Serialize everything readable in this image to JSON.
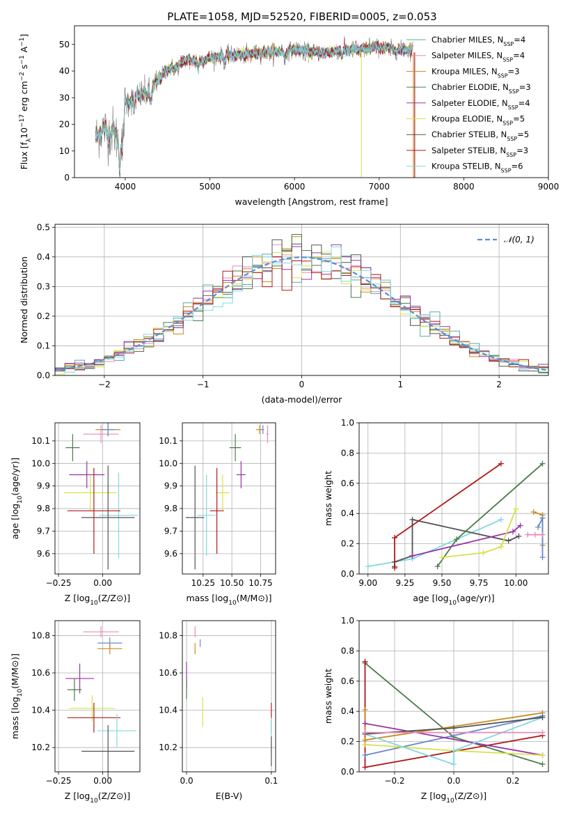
{
  "figure_title": "PLATE=1058, MJD=52520, FIBERID=0005, z=0.053",
  "chart_data": [
    {
      "id": "spectrum",
      "type": "line",
      "xlabel": "wavelength [Angstrom, rest frame]",
      "ylabel": "Flux [f_λ10^-17 erg cm^-2 s^-1 A^-1]",
      "xlim": [
        3400,
        9000
      ],
      "ylim": [
        0,
        57
      ],
      "xticks": [
        4000,
        5000,
        6000,
        7000,
        8000,
        9000
      ],
      "yticks": [
        0,
        10,
        20,
        30,
        40,
        50
      ],
      "legend_position": "right",
      "spectrum_shape": {
        "x": [
          3650,
          3700,
          3750,
          3800,
          3850,
          3900,
          3950,
          4000,
          4100,
          4200,
          4300,
          4400,
          4500,
          4600,
          4700,
          4800,
          4900,
          5000,
          5200,
          5400,
          5600,
          5800,
          6000,
          6200,
          6400,
          6600,
          6800,
          7000,
          7200,
          7400
        ],
        "y": [
          15,
          17,
          19,
          16,
          18,
          15,
          14,
          28,
          30,
          31,
          32,
          37,
          41,
          41,
          44,
          44,
          44,
          45,
          46,
          46,
          47,
          47,
          48,
          47,
          47,
          48,
          48,
          49,
          48,
          48
        ]
      },
      "model_series": [
        {
          "name": "Chabrier MILES",
          "nssp": "4",
          "color": "#58a8a8"
        },
        {
          "name": "Salpeter MILES",
          "nssp": "4",
          "color": "#e88ab8"
        },
        {
          "name": "Kroupa MILES",
          "nssp": "3",
          "color": "#c88a20"
        },
        {
          "name": "Chabrier ELODIE",
          "nssp": "3",
          "color": "#4a7a4a"
        },
        {
          "name": "Salpeter ELODIE",
          "nssp": "4",
          "color": "#9b30a8"
        },
        {
          "name": "Kroupa ELODIE",
          "nssp": "5",
          "color": "#d8e048"
        },
        {
          "name": "Chabrier STELIB",
          "nssp": "5",
          "color": "#505050"
        },
        {
          "name": "Salpeter STELIB",
          "nssp": "3",
          "color": "#b01818"
        },
        {
          "name": "Kroupa STELIB",
          "nssp": "6",
          "color": "#80d8e0"
        }
      ]
    },
    {
      "id": "residuals",
      "type": "bar",
      "xlabel": "(data-model)/error",
      "ylabel": "Normed distribution",
      "xlim": [
        -2.5,
        2.5
      ],
      "ylim": [
        0,
        0.51
      ],
      "xticks": [
        -2,
        -1,
        0,
        1,
        2
      ],
      "yticks": [
        0.0,
        0.1,
        0.2,
        0.3,
        0.4,
        0.5
      ],
      "grid": true,
      "legend_position": "top-right",
      "gaussian_label": "𝒩(0, 1)",
      "gaussian_color": "#5b8bd8",
      "bin_width": 0.1
    },
    {
      "id": "age-vs-z",
      "type": "scatter",
      "xlabel": "Z [log10(Z/Z⊙)]",
      "ylabel": "age  [log10(age/yr)]",
      "xlim": [
        -0.27,
        0.21
      ],
      "ylim": [
        9.51,
        10.18
      ],
      "xticks": [
        -0.25,
        0.0
      ],
      "yticks": [
        9.6,
        9.7,
        9.8,
        9.9,
        10.0,
        10.1
      ],
      "grid": true,
      "points": [
        {
          "color": "#c88a20",
          "x": 0.03,
          "xerr": 0.07,
          "y": 10.15,
          "yerr": 0.03
        },
        {
          "color": "#e88ab8",
          "x": -0.01,
          "xerr": 0.1,
          "y": 10.13,
          "yerr": 0.04
        },
        {
          "color": "#6688cc",
          "x": 0.03,
          "xerr": 0.04,
          "y": 10.15,
          "yerr": 0.03
        },
        {
          "color": "#4a7a4a",
          "x": -0.17,
          "xerr": 0.04,
          "y": 10.07,
          "yerr": 0.06
        },
        {
          "color": "#9b30a8",
          "x": -0.09,
          "xerr": 0.1,
          "y": 9.95,
          "yerr": 0.06
        },
        {
          "color": "#d8e048",
          "x": -0.07,
          "xerr": 0.15,
          "y": 9.87,
          "yerr": 0.08
        },
        {
          "color": "#80d8e0",
          "x": 0.09,
          "xerr": 0.11,
          "y": 9.77,
          "yerr": 0.19
        },
        {
          "color": "#b01818",
          "x": -0.05,
          "xerr": 0.15,
          "y": 9.79,
          "yerr": 0.19
        },
        {
          "color": "#505050",
          "x": 0.03,
          "xerr": 0.15,
          "y": 9.76,
          "yerr": 0.23
        }
      ]
    },
    {
      "id": "age-vs-mass",
      "type": "scatter",
      "xlabel": "mass [log10(M/M⊙)]",
      "xlim": [
        10.07,
        10.88
      ],
      "ylim": [
        9.51,
        10.18
      ],
      "xticks": [
        10.25,
        10.5,
        10.75
      ],
      "yticks": [
        9.6,
        9.7,
        9.8,
        9.9,
        10.0,
        10.1
      ],
      "grid": true,
      "points": [
        {
          "color": "#c88a20",
          "x": 10.74,
          "xerr": 0.03,
          "y": 10.15,
          "yerr": 0.02
        },
        {
          "color": "#6688cc",
          "x": 10.77,
          "xerr": 0.01,
          "y": 10.15,
          "yerr": 0.02
        },
        {
          "color": "#e88ab8",
          "x": 10.81,
          "xerr": 0.01,
          "y": 10.13,
          "yerr": 0.04
        },
        {
          "color": "#4a7a4a",
          "x": 10.53,
          "xerr": 0.05,
          "y": 10.07,
          "yerr": 0.06
        },
        {
          "color": "#9b30a8",
          "x": 10.58,
          "xerr": 0.04,
          "y": 9.95,
          "yerr": 0.06
        },
        {
          "color": "#d8e048",
          "x": 10.42,
          "xerr": 0.06,
          "y": 9.87,
          "yerr": 0.08
        },
        {
          "color": "#80d8e0",
          "x": 10.28,
          "xerr": 0.08,
          "y": 9.77,
          "yerr": 0.18
        },
        {
          "color": "#b01818",
          "x": 10.37,
          "xerr": 0.06,
          "y": 9.79,
          "yerr": 0.19
        },
        {
          "color": "#505050",
          "x": 10.18,
          "xerr": 0.08,
          "y": 9.76,
          "yerr": 0.23
        }
      ]
    },
    {
      "id": "weight-vs-age",
      "type": "line",
      "xlabel": "age  [log10(age/yr)]",
      "ylabel": "mass weight",
      "xlim": [
        8.94,
        10.22
      ],
      "ylim": [
        0,
        1
      ],
      "xticks": [
        9.0,
        9.25,
        9.5,
        9.75,
        10.0
      ],
      "yticks": [
        0.0,
        0.2,
        0.4,
        0.6,
        0.8,
        1.0
      ],
      "grid": true,
      "series": [
        {
          "color": "#80d8e0",
          "x": [
            9.0,
            9.3,
            9.9
          ],
          "y": [
            0.05,
            0.1,
            0.36
          ]
        },
        {
          "color": "#505050",
          "x": [
            9.18,
            9.18,
            9.3,
            9.3,
            9.95,
            10.02
          ],
          "y": [
            0.05,
            0.08,
            0.12,
            0.36,
            0.22,
            0.25
          ]
        },
        {
          "color": "#b01818",
          "x": [
            9.18,
            9.18,
            9.9
          ],
          "y": [
            0.04,
            0.24,
            0.73
          ]
        },
        {
          "color": "#4a7a4a",
          "x": [
            9.47,
            9.6,
            10.18
          ],
          "y": [
            0.05,
            0.23,
            0.73
          ]
        },
        {
          "color": "#9b30a8",
          "x": [
            9.3,
            9.98,
            10.03
          ],
          "y": [
            0.12,
            0.28,
            0.32
          ]
        },
        {
          "color": "#d8e048",
          "x": [
            9.5,
            9.78,
            9.9,
            10.0
          ],
          "y": [
            0.11,
            0.14,
            0.18,
            0.43
          ]
        },
        {
          "color": "#c88a20",
          "x": [
            10.12,
            10.18,
            10.18
          ],
          "y": [
            0.41,
            0.39,
            0.19
          ]
        },
        {
          "color": "#6688cc",
          "x": [
            10.15,
            10.18,
            10.18
          ],
          "y": [
            0.31,
            0.37,
            0.11
          ]
        },
        {
          "color": "#e88ab8",
          "x": [
            10.08,
            10.13,
            10.18
          ],
          "y": [
            0.26,
            0.26,
            0.26
          ]
        }
      ]
    },
    {
      "id": "mass-vs-z",
      "type": "scatter",
      "xlabel": "Z [log10(Z/Z⊙)]",
      "ylabel": "mass [log10(M/M⊙)]",
      "xlim": [
        -0.27,
        0.21
      ],
      "ylim": [
        10.07,
        10.88
      ],
      "xticks": [
        -0.25,
        0.0
      ],
      "yticks": [
        10.2,
        10.4,
        10.6,
        10.8
      ],
      "grid": true,
      "points": [
        {
          "color": "#e88ab8",
          "x": -0.01,
          "xerr": 0.1,
          "y": 10.82,
          "yerr": 0.03
        },
        {
          "color": "#6688cc",
          "x": 0.04,
          "xerr": 0.07,
          "y": 10.76,
          "yerr": 0.03
        },
        {
          "color": "#c88a20",
          "x": 0.04,
          "xerr": 0.07,
          "y": 10.73,
          "yerr": 0.03
        },
        {
          "color": "#9b30a8",
          "x": -0.13,
          "xerr": 0.08,
          "y": 10.57,
          "yerr": 0.08
        },
        {
          "color": "#4a7a4a",
          "x": -0.16,
          "xerr": 0.04,
          "y": 10.51,
          "yerr": 0.06
        },
        {
          "color": "#d8e048",
          "x": -0.06,
          "xerr": 0.13,
          "y": 10.41,
          "yerr": 0.07
        },
        {
          "color": "#b01818",
          "x": -0.05,
          "xerr": 0.15,
          "y": 10.36,
          "yerr": 0.08
        },
        {
          "color": "#80d8e0",
          "x": 0.08,
          "xerr": 0.11,
          "y": 10.29,
          "yerr": 0.09
        },
        {
          "color": "#505050",
          "x": 0.03,
          "xerr": 0.15,
          "y": 10.18,
          "yerr": 0.14
        }
      ]
    },
    {
      "id": "mass-vs-ebv",
      "type": "scatter",
      "xlabel": "E(B-V)",
      "xlim": [
        -0.005,
        0.105
      ],
      "ylim": [
        10.07,
        10.88
      ],
      "xticks": [
        0.0,
        0.1
      ],
      "yticks": [
        10.2,
        10.4,
        10.6,
        10.8
      ],
      "grid": true,
      "points": [
        {
          "color": "#e88ab8",
          "x": 0.01,
          "y": 10.82,
          "yerr": 0.03
        },
        {
          "color": "#6688cc",
          "x": 0.016,
          "y": 10.76,
          "yerr": 0.02
        },
        {
          "color": "#c88a20",
          "x": 0.01,
          "y": 10.73,
          "yerr": 0.03
        },
        {
          "color": "#9b30a8",
          "x": 0.0,
          "y": 10.59,
          "yerr": 0.07
        },
        {
          "color": "#4a7a4a",
          "x": 0.0,
          "y": 10.51,
          "yerr": 0.05
        },
        {
          "color": "#d8e048",
          "x": 0.019,
          "y": 10.39,
          "yerr": 0.08
        },
        {
          "color": "#b01818",
          "x": 0.1,
          "y": 10.36,
          "yerr": 0.08
        },
        {
          "color": "#80d8e0",
          "x": 0.1,
          "y": 10.26,
          "yerr": 0.1
        },
        {
          "color": "#505050",
          "x": 0.1,
          "y": 10.18,
          "yerr": 0.08
        }
      ]
    },
    {
      "id": "weight-vs-z",
      "type": "line",
      "xlabel": "Z [log10(Z/Z⊙)]",
      "ylabel": "mass weight",
      "xlim": [
        -0.32,
        0.32
      ],
      "ylim": [
        0,
        1
      ],
      "xticks": [
        -0.2,
        0.0,
        0.2
      ],
      "yticks": [
        0.0,
        0.2,
        0.4,
        0.6,
        0.8,
        1.0
      ],
      "grid": true,
      "series": [
        {
          "color": "#4a7a4a",
          "x": [
            -0.3,
            0.0,
            0.3
          ],
          "y": [
            0.72,
            0.23,
            0.05
          ]
        },
        {
          "color": "#b01818",
          "x": [
            -0.3,
            -0.3,
            0.3
          ],
          "y": [
            0.73,
            0.03,
            0.24
          ]
        },
        {
          "color": "#c88a20",
          "x": [
            -0.3,
            -0.3,
            0.3
          ],
          "y": [
            0.41,
            0.21,
            0.39
          ]
        },
        {
          "color": "#6688cc",
          "x": [
            -0.3,
            0.3
          ],
          "y": [
            0.11,
            0.37
          ]
        },
        {
          "color": "#9b30a8",
          "x": [
            -0.3,
            0.3
          ],
          "y": [
            0.32,
            0.11
          ]
        },
        {
          "color": "#d8e048",
          "x": [
            -0.3,
            0.0,
            0.3
          ],
          "y": [
            0.18,
            0.14,
            0.11
          ]
        },
        {
          "color": "#80d8e0",
          "x": [
            -0.3,
            0.0,
            0.0,
            0.3
          ],
          "y": [
            0.25,
            0.05,
            0.14,
            0.36
          ]
        },
        {
          "color": "#505050",
          "x": [
            -0.3,
            0.0,
            0.3
          ],
          "y": [
            0.25,
            0.29,
            0.36
          ]
        },
        {
          "color": "#e88ab8",
          "x": [
            -0.3,
            0.3
          ],
          "y": [
            0.26,
            0.26
          ]
        }
      ]
    }
  ]
}
